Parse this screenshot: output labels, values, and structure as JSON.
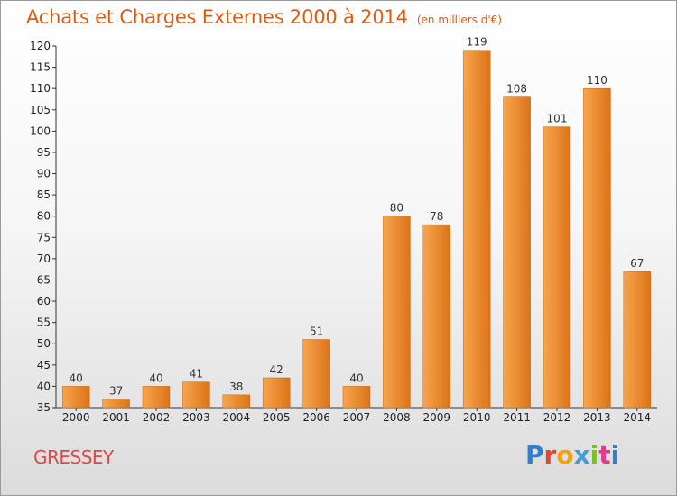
{
  "title": "Achats et Charges Externes 2000 à 2014",
  "unit_note": "(en milliers d'€)",
  "place_label": "GRESSEY",
  "logo_text": "Proxiti",
  "colors": {
    "title": "#e05a0c",
    "place": "#d94a4a",
    "bar_light": "#f7a54f",
    "bar_dark": "#dc7318"
  },
  "chart_data": {
    "type": "bar",
    "categories": [
      "2000",
      "2001",
      "2002",
      "2003",
      "2004",
      "2005",
      "2006",
      "2007",
      "2008",
      "2009",
      "2010",
      "2011",
      "2012",
      "2013",
      "2014"
    ],
    "values": [
      40,
      37,
      40,
      41,
      38,
      42,
      51,
      40,
      80,
      78,
      119,
      108,
      101,
      110,
      67
    ],
    "ylim": [
      35,
      120
    ],
    "yticks": [
      35,
      40,
      45,
      50,
      55,
      60,
      65,
      70,
      75,
      80,
      85,
      90,
      95,
      100,
      105,
      110,
      115,
      120
    ],
    "data_labels": true,
    "grid": false
  }
}
